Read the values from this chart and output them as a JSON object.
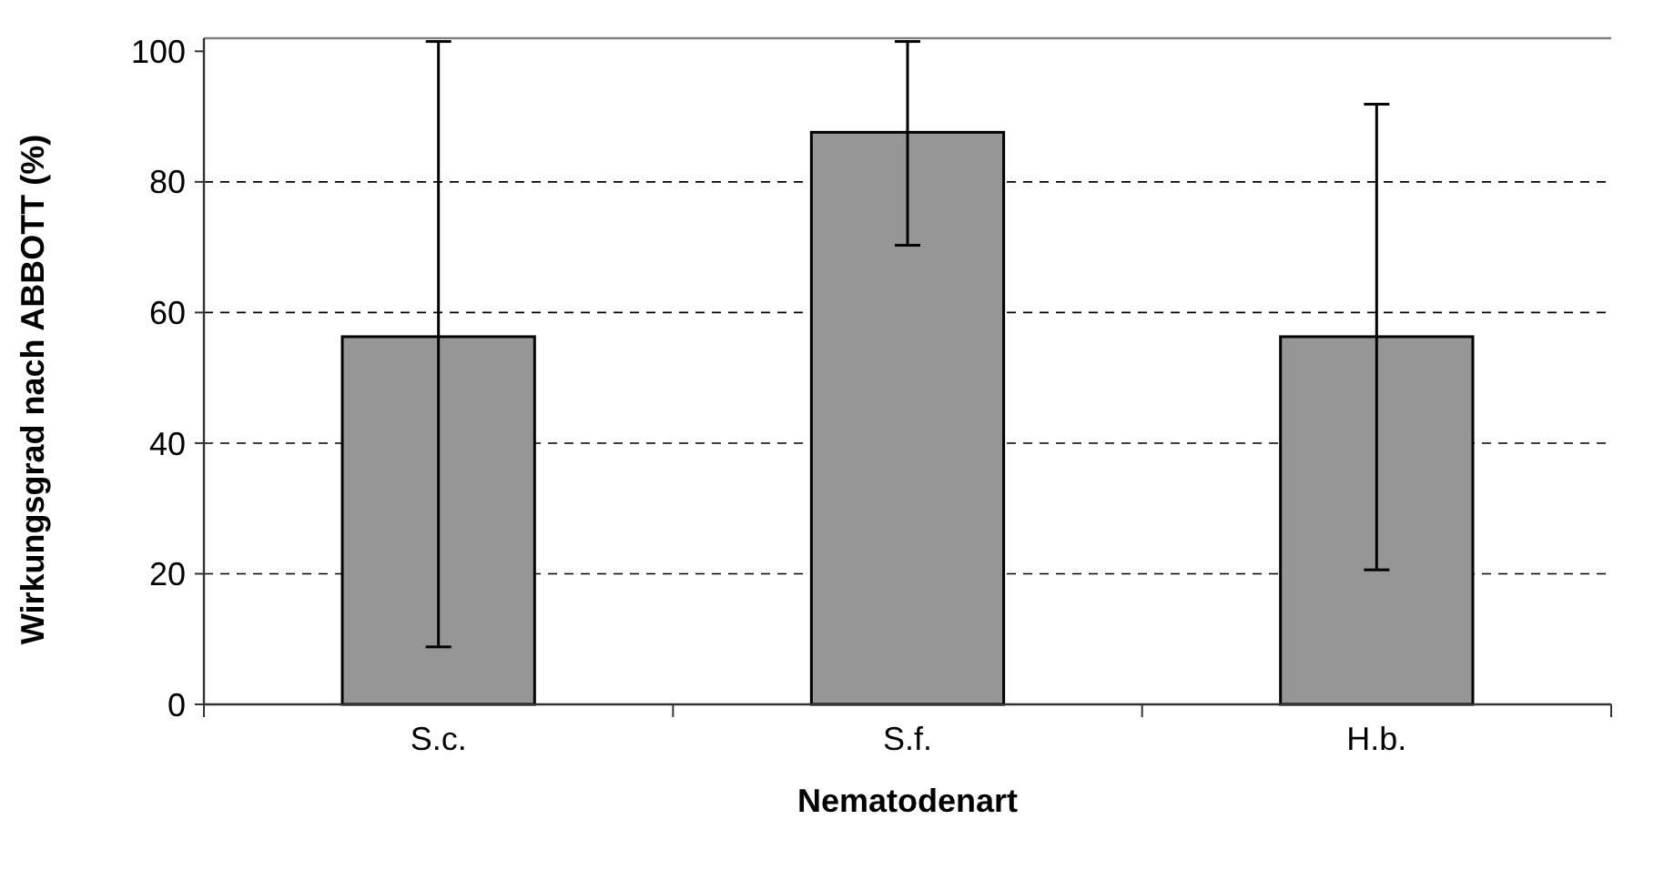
{
  "chart_data": {
    "type": "bar",
    "xlabel": "Nematodenart",
    "ylabel": "Wirkungsgrad nach ABBOTT (%)",
    "categories": [
      "S.c.",
      "S.f.",
      "H.b."
    ],
    "values": [
      56.3,
      87.6,
      56.3
    ],
    "errors": [
      [
        8.8,
        101.5
      ],
      [
        70.3,
        101.5
      ],
      [
        20.6,
        91.9
      ]
    ],
    "color": "#969696",
    "ylim": [
      0,
      102
    ],
    "yticks": [
      0,
      20,
      40,
      60,
      80,
      100
    ],
    "grid": "y"
  }
}
